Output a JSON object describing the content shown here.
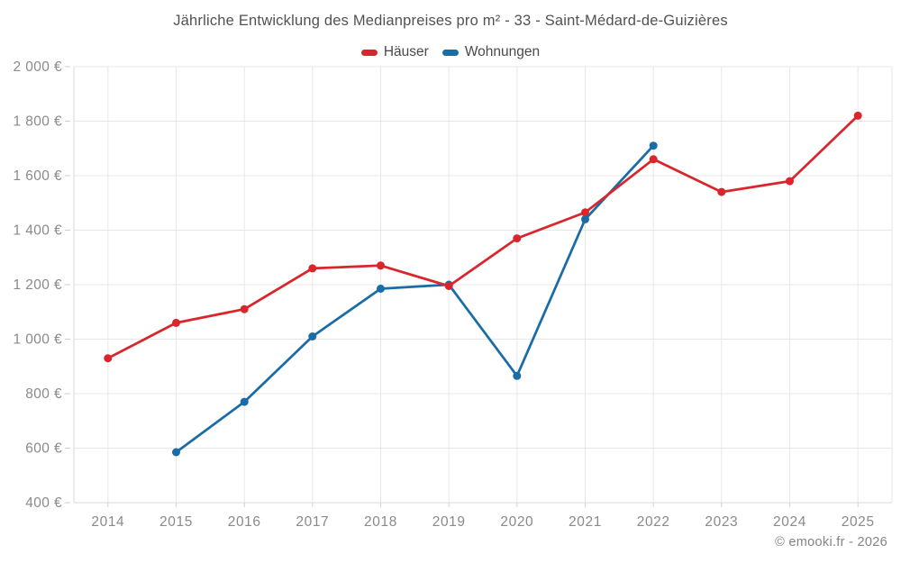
{
  "chart": {
    "title": "Jährliche Entwicklung des Medianpreises pro m² - 33 - Saint-Médard-de-Guizières",
    "footer": "© emooki.fr - 2026"
  },
  "chart_data": {
    "type": "line",
    "title": "Jährliche Entwicklung des Medianpreises pro m² - 33 - Saint-Médard-de-Guizières",
    "categories": [
      "2014",
      "2015",
      "2016",
      "2017",
      "2018",
      "2019",
      "2020",
      "2021",
      "2022",
      "2023",
      "2024",
      "2025"
    ],
    "series": [
      {
        "name": "Häuser",
        "color": "#d8262c",
        "values": [
          930,
          1060,
          1110,
          1260,
          1270,
          1195,
          1370,
          1465,
          1660,
          1540,
          1580,
          1820
        ]
      },
      {
        "name": "Wohnungen",
        "color": "#1a6ca6",
        "values": [
          null,
          585,
          770,
          1010,
          1185,
          1200,
          865,
          1440,
          1710,
          null,
          null,
          null
        ]
      }
    ],
    "ylim": [
      400,
      2000
    ],
    "ytick_step": 200,
    "ytick_labels": [
      "400 €",
      "600 €",
      "800 €",
      "1 000 €",
      "1 200 €",
      "1 400 €",
      "1 600 €",
      "1 800 €",
      "2 000 €"
    ],
    "ylabel": "",
    "xlabel": "",
    "grid": true,
    "legend_position": "top",
    "marker_radius": 4.5,
    "line_width": 2.75,
    "grid_color": "#e7e7e7",
    "axis_color": "#d9d9d9",
    "tick_color": "#cfcfcf",
    "tick_label_color": "#8a8a8a"
  }
}
